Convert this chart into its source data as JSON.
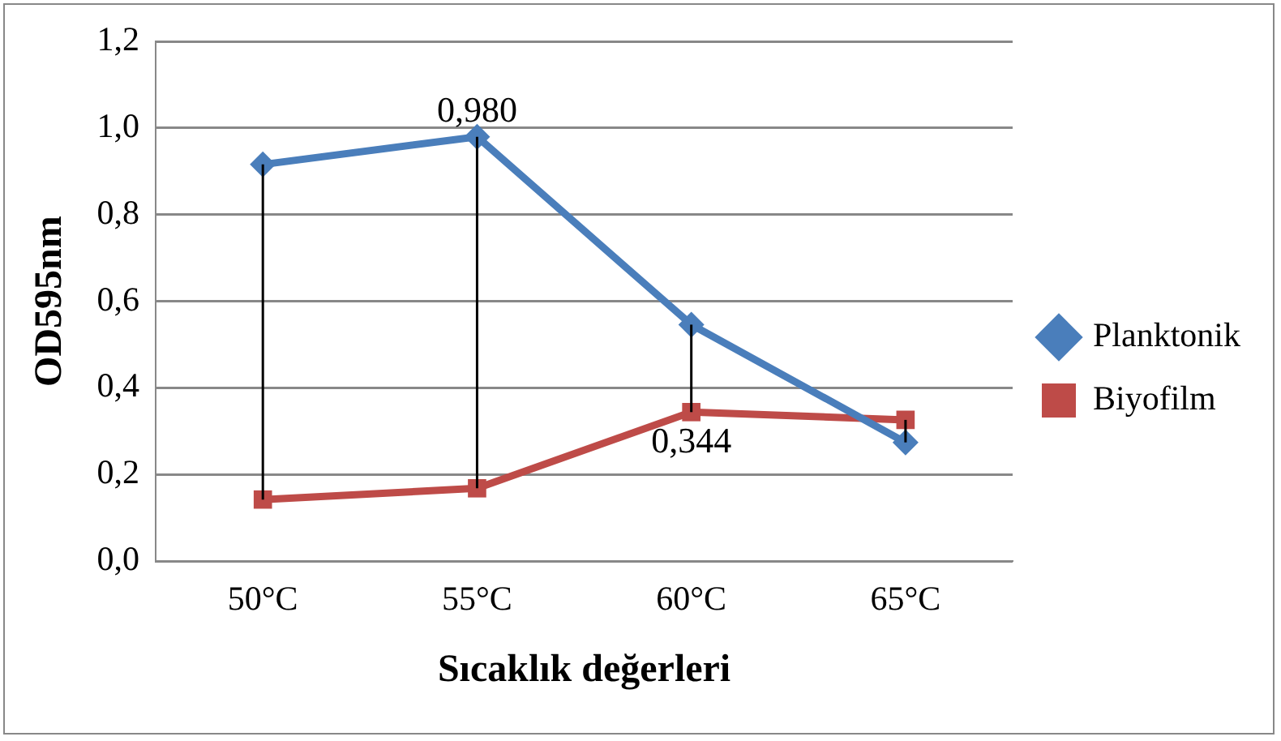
{
  "chart_data": {
    "type": "line",
    "xlabel": "Sıcaklık değerleri",
    "ylabel": "OD595nm",
    "categories": [
      "50°C",
      "55°C",
      "60°C",
      "65°C"
    ],
    "series": [
      {
        "name": "Planktonik",
        "color": "#4a7ebb",
        "marker": "diamond",
        "values": [
          0.916,
          0.98,
          0.546,
          0.274
        ],
        "value_labels": [
          null,
          "0,980",
          null,
          null
        ]
      },
      {
        "name": "Biyofilm",
        "color": "#be4b48",
        "marker": "square",
        "values": [
          0.142,
          0.168,
          0.344,
          0.326
        ],
        "errors": [
          [
            0.142,
            0.916
          ],
          [
            0.168,
            0.98
          ],
          [
            0.344,
            0.546
          ],
          [
            0.274,
            0.326
          ]
        ],
        "value_labels": [
          null,
          null,
          "0,344",
          null
        ]
      }
    ],
    "ylim": [
      0,
      1.2
    ],
    "yticks": [
      {
        "value": 0,
        "label": "0,0"
      },
      {
        "value": 0.2,
        "label": "0,2"
      },
      {
        "value": 0.4,
        "label": "0,4"
      },
      {
        "value": 0.6,
        "label": "0,6"
      },
      {
        "value": 0.8,
        "label": "0,8"
      },
      {
        "value": 1,
        "label": "1,0"
      },
      {
        "value": 1.2,
        "label": "1,2"
      }
    ],
    "grid": "y",
    "legend": "right"
  }
}
